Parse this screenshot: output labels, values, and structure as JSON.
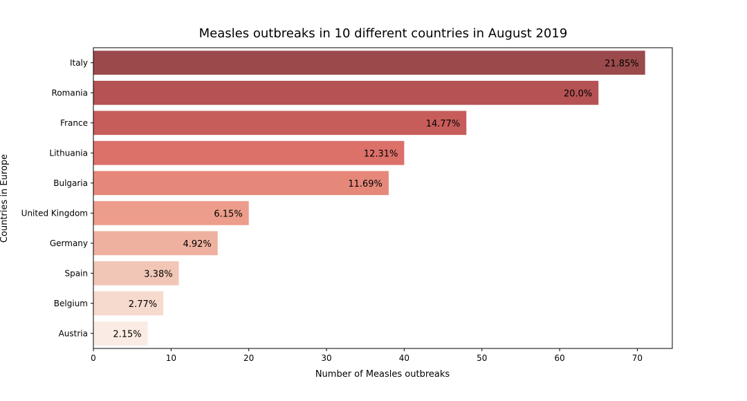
{
  "chart_data": {
    "type": "bar",
    "orientation": "horizontal",
    "title": "Measles outbreaks in 10 different countries in August 2019",
    "xlabel": "Number of Measles outbreaks",
    "ylabel": "Countries in Europe",
    "xlim": [
      0,
      74.5
    ],
    "xticks": [
      0,
      10,
      20,
      30,
      40,
      50,
      60,
      70
    ],
    "grid": false,
    "categories": [
      "Italy",
      "Romania",
      "France",
      "Lithuania",
      "Bulgaria",
      "United Kingdom",
      "Germany",
      "Spain",
      "Belgium",
      "Austria"
    ],
    "values": [
      71,
      65,
      48,
      40,
      38,
      20,
      16,
      11,
      9,
      7
    ],
    "data_labels": [
      "21.85%",
      "20.0%",
      "14.77%",
      "12.31%",
      "11.69%",
      "6.15%",
      "4.92%",
      "3.38%",
      "2.77%",
      "2.15%"
    ],
    "colors": [
      "#9b4a4c",
      "#b55254",
      "#c75d5b",
      "#dc716a",
      "#e5887a",
      "#ec9d8b",
      "#efb19f",
      "#f2c6b6",
      "#f6dace",
      "#faece4"
    ]
  }
}
